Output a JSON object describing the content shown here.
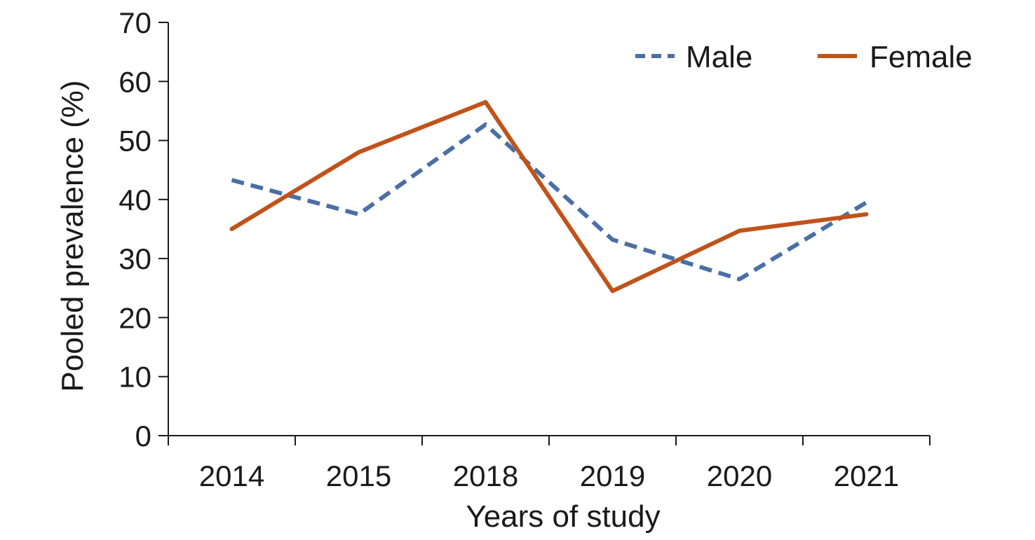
{
  "chart_data": {
    "type": "line",
    "title": "",
    "xlabel": "Years of study",
    "ylabel": "Pooled prevalence (%)",
    "categories": [
      "2014",
      "2015",
      "2018",
      "2019",
      "2020",
      "2021"
    ],
    "ylim": [
      0,
      70
    ],
    "yticks": [
      "0",
      "10",
      "20",
      "30",
      "40",
      "50",
      "60",
      "70"
    ],
    "ytick_values": [
      0,
      10,
      20,
      30,
      40,
      50,
      60,
      70
    ],
    "grid": false,
    "legend_position": "top-right",
    "series": [
      {
        "name": "Male",
        "color": "#4a6fa5",
        "dash": "dashed",
        "values": [
          43.3,
          37.5,
          52.7,
          33.2,
          26.5,
          39.5
        ]
      },
      {
        "name": "Female",
        "color": "#c0531a",
        "dash": "solid",
        "values": [
          35.0,
          48.0,
          56.5,
          24.5,
          34.7,
          37.5
        ]
      }
    ]
  }
}
